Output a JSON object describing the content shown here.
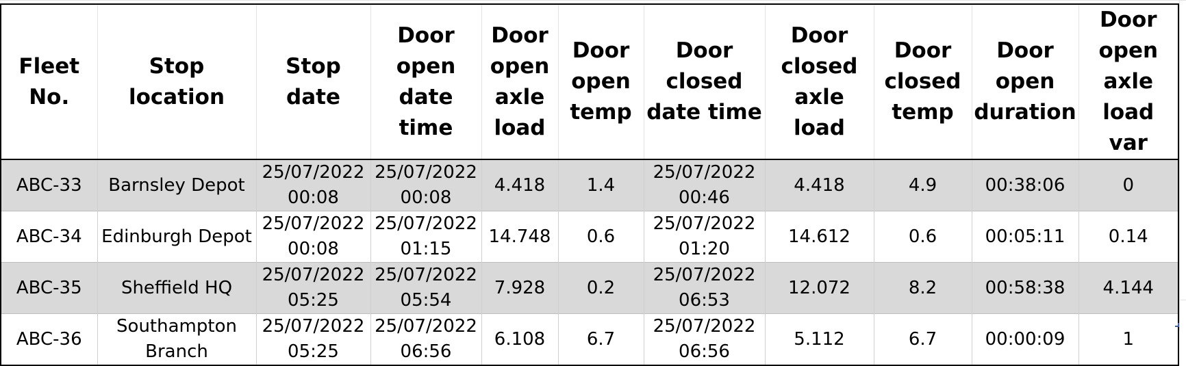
{
  "table": {
    "headers": [
      "Fleet No.",
      "Stop location",
      "Stop date",
      "Door open date time",
      "Door open axle load",
      "Door open temp",
      "Door closed date time",
      "Door closed axle load",
      "Door closed temp",
      "Door open duration",
      "Door open axle load var"
    ],
    "rows": [
      [
        "ABC-33",
        "Barnsley Depot",
        "25/07/2022 00:08",
        "25/07/2022 00:08",
        "4.418",
        "1.4",
        "25/07/2022 00:46",
        "4.418",
        "4.9",
        "00:38:06",
        "0"
      ],
      [
        "ABC-34",
        "Edinburgh Depot",
        "25/07/2022 00:08",
        "25/07/2022 01:15",
        "14.748",
        "0.6",
        "25/07/2022 01:20",
        "14.612",
        "0.6",
        "00:05:11",
        "0.14"
      ],
      [
        "ABC-35",
        "Sheffield HQ",
        "25/07/2022 05:25",
        "25/07/2022 05:54",
        "7.928",
        "0.2",
        "25/07/2022 06:53",
        "12.072",
        "8.2",
        "00:58:38",
        "4.144"
      ],
      [
        "ABC-36",
        "Southampton Branch",
        "25/07/2022 05:25",
        "25/07/2022 06:56",
        "6.108",
        "6.7",
        "25/07/2022 06:56",
        "5.112",
        "6.7",
        "00:00:09",
        "1"
      ]
    ]
  }
}
